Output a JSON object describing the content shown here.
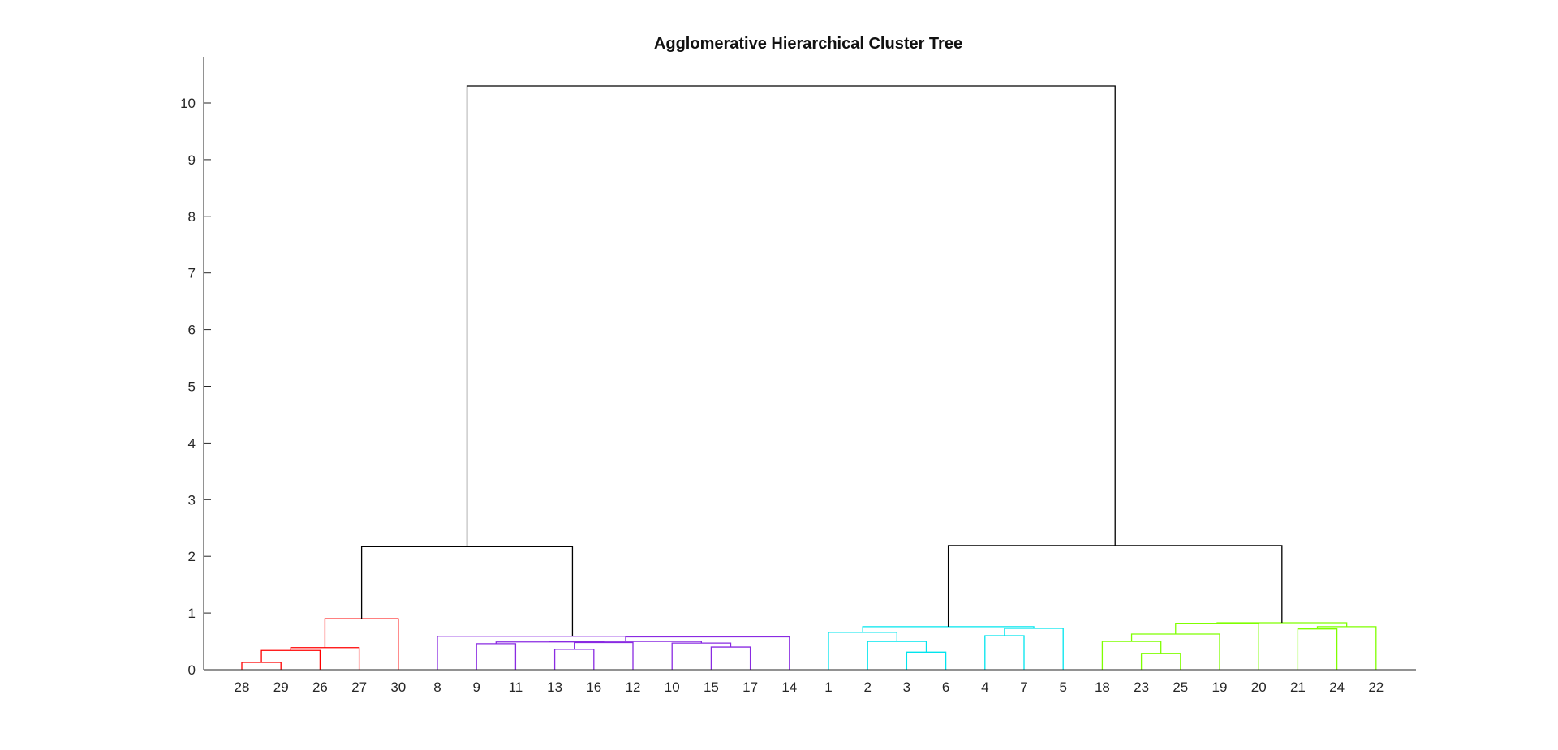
{
  "chart_data": {
    "type": "dendrogram",
    "title": "Agglomerative Hierarchical Cluster Tree",
    "xlabel": "",
    "ylabel": "",
    "ylim": [
      0,
      10.8
    ],
    "yticks": [
      0,
      1,
      2,
      3,
      4,
      5,
      6,
      7,
      8,
      9,
      10
    ],
    "grid": false,
    "leaf_order": [
      "28",
      "29",
      "26",
      "27",
      "30",
      "8",
      "9",
      "11",
      "13",
      "16",
      "12",
      "10",
      "15",
      "17",
      "14",
      "1",
      "2",
      "3",
      "6",
      "4",
      "7",
      "5",
      "18",
      "23",
      "25",
      "19",
      "20",
      "21",
      "24",
      "22"
    ],
    "colors": {
      "red": "#ff0000",
      "purple": "#8a2be2",
      "cyan": "#00e5ee",
      "green": "#7fff00",
      "root": "#000000"
    },
    "merges": [
      {
        "id": "m1",
        "left": "28",
        "right": "29",
        "height": 0.13,
        "color": "red"
      },
      {
        "id": "m2",
        "left": "m1",
        "right": "26",
        "height": 0.34,
        "color": "red"
      },
      {
        "id": "m3",
        "left": "m2",
        "right": "27",
        "height": 0.39,
        "color": "red"
      },
      {
        "id": "m4",
        "left": "m3",
        "right": "30",
        "height": 0.9,
        "color": "red"
      },
      {
        "id": "m5",
        "left": "13",
        "right": "16",
        "height": 0.36,
        "color": "purple"
      },
      {
        "id": "m6",
        "left": "15",
        "right": "17",
        "height": 0.4,
        "color": "purple"
      },
      {
        "id": "m7",
        "left": "9",
        "right": "11",
        "height": 0.46,
        "color": "purple"
      },
      {
        "id": "m8",
        "left": "10",
        "right": "m6",
        "height": 0.47,
        "color": "purple"
      },
      {
        "id": "m9",
        "left": "m5",
        "right": "12",
        "height": 0.48,
        "color": "purple"
      },
      {
        "id": "m10",
        "left": "m7",
        "right": "m9",
        "height": 0.49,
        "color": "purple"
      },
      {
        "id": "m11",
        "left": "m10",
        "right": "m8",
        "height": 0.5,
        "color": "purple"
      },
      {
        "id": "m12",
        "left": "m11",
        "right": "14",
        "height": 0.58,
        "color": "purple"
      },
      {
        "id": "m13",
        "left": "8",
        "right": "m12",
        "height": 0.59,
        "color": "purple"
      },
      {
        "id": "m14",
        "left": "m4",
        "right": "m13",
        "height": 2.17,
        "color": "root"
      },
      {
        "id": "m15",
        "left": "3",
        "right": "6",
        "height": 0.31,
        "color": "cyan"
      },
      {
        "id": "m16",
        "left": "2",
        "right": "m15",
        "height": 0.5,
        "color": "cyan"
      },
      {
        "id": "m17",
        "left": "4",
        "right": "7",
        "height": 0.6,
        "color": "cyan"
      },
      {
        "id": "m18",
        "left": "1",
        "right": "m16",
        "height": 0.66,
        "color": "cyan"
      },
      {
        "id": "m19",
        "left": "m17",
        "right": "5",
        "height": 0.73,
        "color": "cyan"
      },
      {
        "id": "m20",
        "left": "m18",
        "right": "m19",
        "height": 0.76,
        "color": "cyan"
      },
      {
        "id": "m21",
        "left": "23",
        "right": "25",
        "height": 0.29,
        "color": "green"
      },
      {
        "id": "m22",
        "left": "18",
        "right": "m21",
        "height": 0.5,
        "color": "green"
      },
      {
        "id": "m23",
        "left": "m22",
        "right": "19",
        "height": 0.63,
        "color": "green"
      },
      {
        "id": "m24",
        "left": "21",
        "right": "24",
        "height": 0.72,
        "color": "green"
      },
      {
        "id": "m25",
        "left": "m24",
        "right": "22",
        "height": 0.76,
        "color": "green"
      },
      {
        "id": "m26",
        "left": "m23",
        "right": "20",
        "height": 0.82,
        "color": "green"
      },
      {
        "id": "m27",
        "left": "m26",
        "right": "m25",
        "height": 0.83,
        "color": "green"
      },
      {
        "id": "m28",
        "left": "m20",
        "right": "m27",
        "height": 2.19,
        "color": "root"
      },
      {
        "id": "m29",
        "left": "m14",
        "right": "m28",
        "height": 10.3,
        "color": "root"
      }
    ]
  }
}
